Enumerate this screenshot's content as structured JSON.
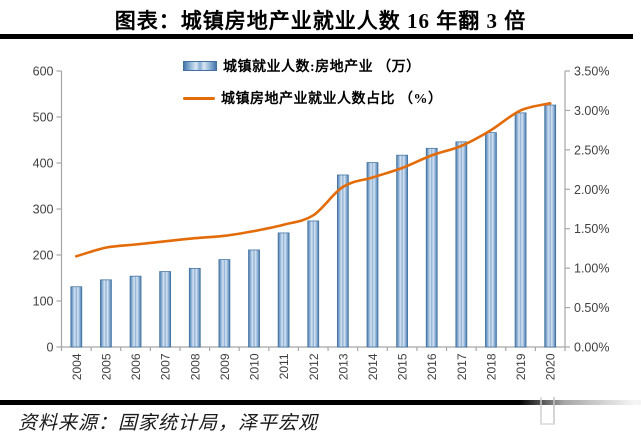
{
  "title": "图表：城镇房地产业就业人数 16 年翻 3 倍",
  "source": "资料来源：国家统计局，泽平宏观",
  "legend": {
    "bar_label": "城镇就业人数:房地产业 （万）",
    "line_label": "城镇房地产业就业人数占比 （%）"
  },
  "colors": {
    "bar_edge": "#4678ae",
    "bar_light": "#d9e5f2",
    "bar_mid": "#89add4",
    "bar_border": "#41719c",
    "line": "#e36c09",
    "axis": "#a6a6a6",
    "tick_label": "#404040"
  },
  "chart_data": {
    "type": "bar",
    "subtype": "bar+line combo, dual axis",
    "categories": [
      "2004",
      "2005",
      "2006",
      "2007",
      "2008",
      "2009",
      "2010",
      "2011",
      "2012",
      "2013",
      "2014",
      "2015",
      "2016",
      "2017",
      "2018",
      "2019",
      "2020"
    ],
    "series": [
      {
        "name": "城镇就业人数:房地产业（万）",
        "type": "bar",
        "axis": "left",
        "values": [
          131,
          146,
          154,
          164,
          171,
          190,
          211,
          248,
          274,
          374,
          401,
          417,
          432,
          446,
          466,
          509,
          526
        ]
      },
      {
        "name": "城镇房地产业就业人数占比（%）",
        "type": "line",
        "axis": "right",
        "values": [
          1.15,
          1.26,
          1.3,
          1.34,
          1.38,
          1.41,
          1.47,
          1.55,
          1.67,
          2.03,
          2.15,
          2.27,
          2.43,
          2.55,
          2.75,
          3.0,
          3.09
        ]
      }
    ],
    "left_axis": {
      "min": 0,
      "max": 600,
      "step": 100,
      "ticks": [
        "0",
        "100",
        "200",
        "300",
        "400",
        "500",
        "600"
      ]
    },
    "right_axis": {
      "min": 0,
      "max": 3.5,
      "step": 0.5,
      "ticks": [
        "0.00%",
        "0.50%",
        "1.00%",
        "1.50%",
        "2.00%",
        "2.50%",
        "3.00%",
        "3.50%"
      ]
    },
    "grid": false,
    "legend_position": "top-center",
    "x_tick_rotation": -90
  }
}
